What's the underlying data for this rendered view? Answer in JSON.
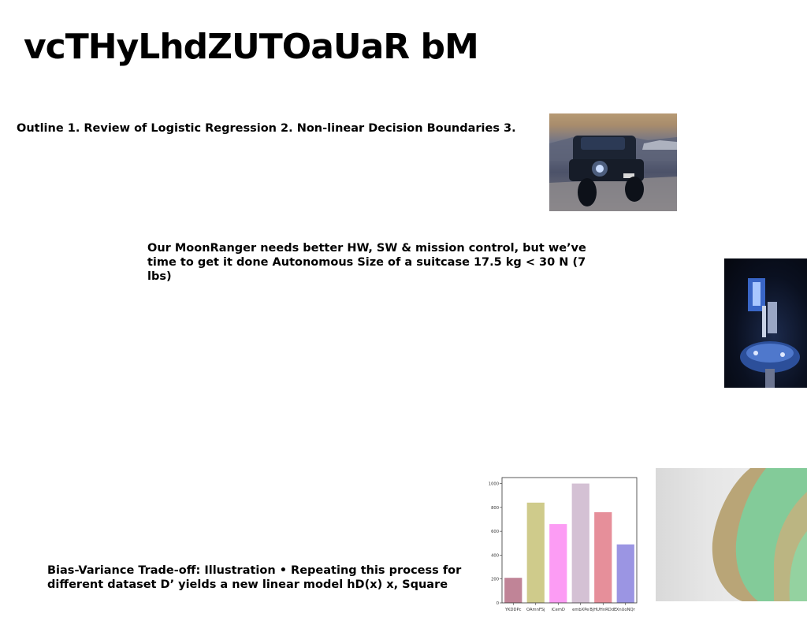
{
  "slide": {
    "title": "vcTHyLhdZUTOaUaR bM",
    "blocks": [
      "Outline 1. Review of Logistic Regression 2. Non-linear Decision Boundaries 3.",
      "Our MoonRanger needs better HW, SW & mission control, but we’ve time to get it done Autonomous Size of a suitcase 17.5 kg < 30 N (7 lbs)",
      "Bias-Variance Trade-off: Illustration • Repeating this process for different dataset D’ yields a new linear model hD(x) x, Square"
    ]
  },
  "chart_data": {
    "type": "bar",
    "categories": [
      "YKDDPc",
      "OAmnFSj",
      "iCemD",
      "embXPe",
      "BjHUHnRDdE",
      "XnUoNQr"
    ],
    "values": [
      210,
      840,
      660,
      1000,
      760,
      490
    ],
    "colors": [
      "#c08497",
      "#cfcb8b",
      "#fc9cf4",
      "#d4c1d4",
      "#e68f9a",
      "#9b95e3"
    ],
    "yticks": [
      0,
      200,
      400,
      600,
      800,
      1000
    ],
    "ylim": [
      0,
      1050
    ],
    "grid": false,
    "title": "",
    "xlabel": "",
    "ylabel": ""
  }
}
